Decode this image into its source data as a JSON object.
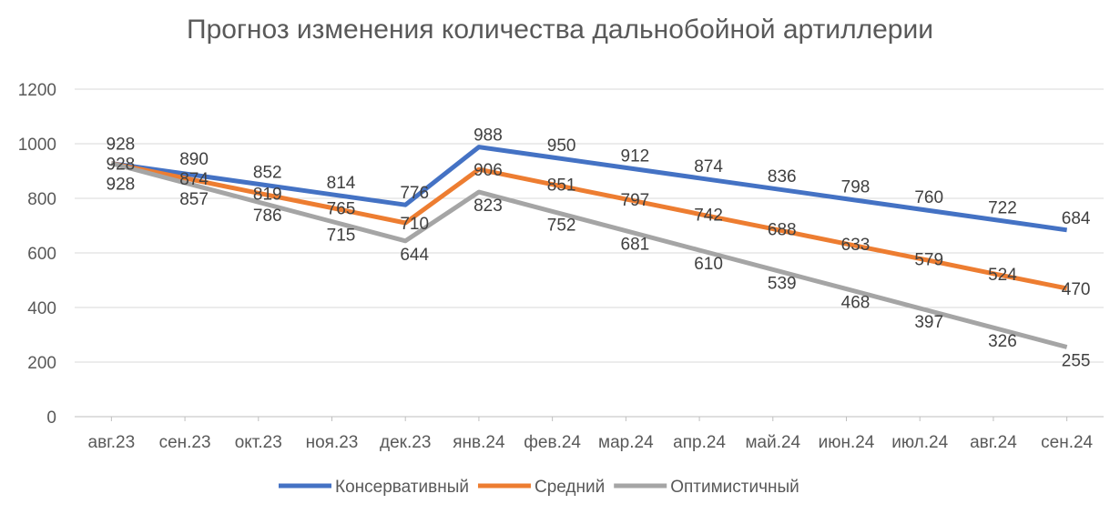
{
  "chart_data": {
    "type": "line",
    "title": "Прогноз изменения количества дальнобойной артиллерии",
    "xlabel": "",
    "ylabel": "",
    "ylim": [
      0,
      1200
    ],
    "yticks": [
      0,
      200,
      400,
      600,
      800,
      1000,
      1200
    ],
    "grid": true,
    "legend_position": "bottom",
    "categories": [
      "авг.23",
      "сен.23",
      "окт.23",
      "ноя.23",
      "дек.23",
      "янв.24",
      "фев.24",
      "мар.24",
      "апр.24",
      "май.24",
      "июн.24",
      "июл.24",
      "авг.24",
      "сен.24"
    ],
    "series": [
      {
        "name": "Консервативный",
        "color": "#4472c4",
        "values": [
          928,
          890,
          852,
          814,
          776,
          988,
          950,
          912,
          874,
          836,
          798,
          760,
          722,
          684
        ]
      },
      {
        "name": "Средний",
        "color": "#ed7d31",
        "values": [
          928,
          874,
          819,
          765,
          710,
          906,
          851,
          797,
          742,
          688,
          633,
          579,
          524,
          470
        ]
      },
      {
        "name": "Оптимистичный",
        "color": "#a5a5a5",
        "values": [
          928,
          857,
          786,
          715,
          644,
          823,
          752,
          681,
          610,
          539,
          468,
          397,
          326,
          255
        ]
      }
    ]
  }
}
